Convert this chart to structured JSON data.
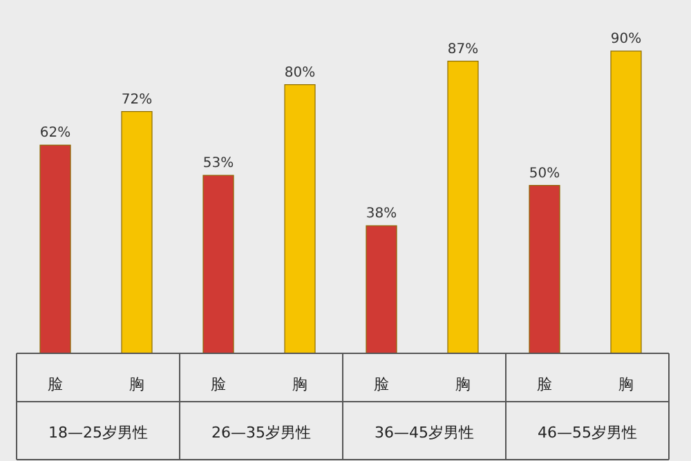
{
  "chart_data": {
    "type": "bar",
    "categories": [
      "18—25岁男性",
      "26—35岁男性",
      "36—45岁男性",
      "46—55岁男性"
    ],
    "series": [
      {
        "name": "脸",
        "color": "#d03a34",
        "values": [
          62,
          53,
          38,
          50
        ],
        "value_labels": [
          "62%",
          "53%",
          "38%",
          "50%"
        ]
      },
      {
        "name": "胸",
        "color": "#f6c300",
        "values": [
          72,
          80,
          87,
          90
        ],
        "value_labels": [
          "72%",
          "80%",
          "87%",
          "90%"
        ]
      }
    ]
  }
}
